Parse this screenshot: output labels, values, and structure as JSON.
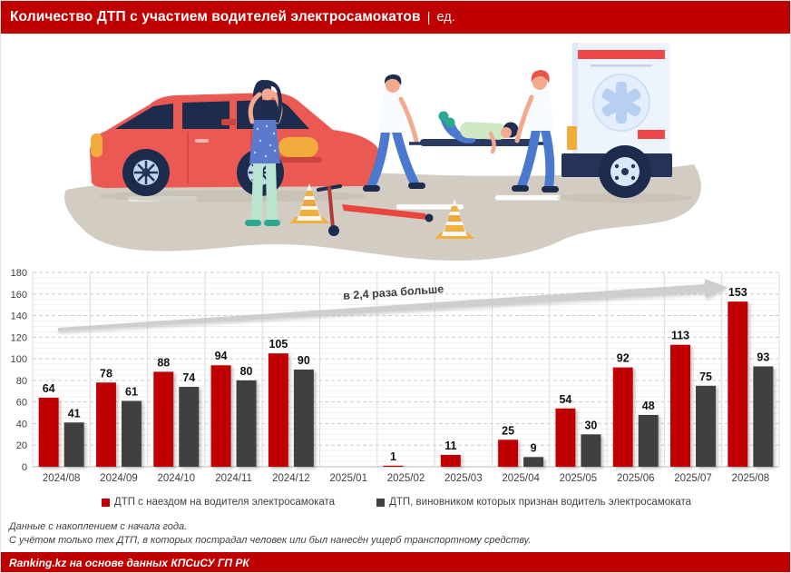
{
  "header": {
    "title": "Количество ДТП с участием водителей электросамокатов",
    "separator": "|",
    "unit": "ед."
  },
  "colors": {
    "brand_red": "#c00000",
    "bar_red": "#c00000",
    "bar_gray": "#404040",
    "arrow_gray": "#c7c7c7"
  },
  "chart_data": {
    "type": "bar",
    "categories": [
      "2024/08",
      "2024/09",
      "2024/10",
      "2024/11",
      "2024/12",
      "2025/01",
      "2025/02",
      "2025/03",
      "2025/04",
      "2025/05",
      "2025/06",
      "2025/07",
      "2025/08"
    ],
    "series": [
      {
        "name": "ДТП с наездом на водителя электросамоката",
        "color": "#c00000",
        "values": [
          64,
          78,
          88,
          94,
          105,
          null,
          1,
          11,
          25,
          54,
          92,
          113,
          153
        ]
      },
      {
        "name": "ДТП, виновником которых признан водитель электросамоката",
        "color": "#404040",
        "values": [
          41,
          61,
          74,
          80,
          90,
          null,
          null,
          null,
          9,
          30,
          48,
          75,
          93
        ]
      }
    ],
    "title": "Количество ДТП с участием водителей электросамокатов, ед.",
    "xlabel": "",
    "ylabel": "",
    "ylim": [
      0,
      180
    ],
    "ytick_step": 20,
    "minor_step": 5,
    "grid": true,
    "legend_position": "bottom",
    "annotation": {
      "text": "в 2,4 раза больше"
    }
  },
  "notes": {
    "line1": "Данные с накоплением с начала года.",
    "line2": "С учётом только тех ДТП, в которых пострадал человек или был нанесён ущерб транспортному средству."
  },
  "footer": {
    "source": "Ranking.kz на основе данных КПСиСУ ГП РК"
  }
}
